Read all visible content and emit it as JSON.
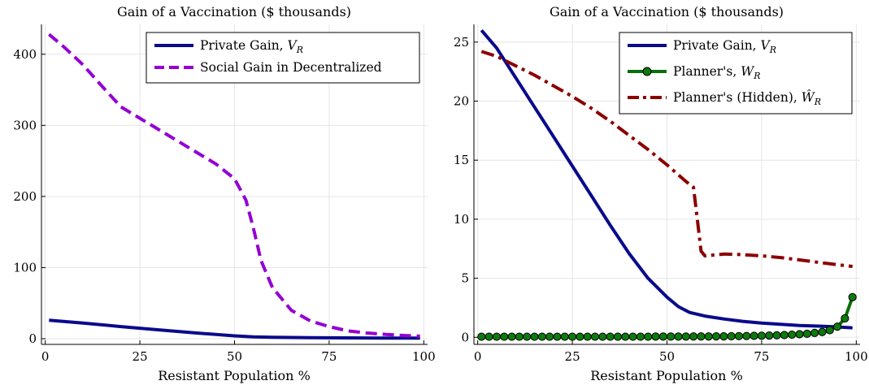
{
  "chart_data": [
    {
      "type": "line",
      "title": "Gain of a Vaccination ($ thousands)",
      "xlabel": "Resistant Population %",
      "ylabel": "",
      "xlim": [
        -1,
        101
      ],
      "ylim": [
        -8,
        442
      ],
      "xticks": [
        "0",
        "25",
        "50",
        "75",
        "100"
      ],
      "yticks": [
        "0",
        "100",
        "200",
        "300",
        "400"
      ],
      "grid": true,
      "legend_position": "top-right",
      "series": [
        {
          "name": "Private Gain, V_R",
          "legend_label": "Private Gain, ",
          "legend_math": "V",
          "legend_sub": "R",
          "color": "#0a0a8c",
          "style": "solid",
          "x": [
            1,
            10,
            20,
            30,
            40,
            50,
            55,
            60,
            70,
            80,
            90,
            99
          ],
          "y": [
            26,
            22,
            17,
            12.5,
            8,
            4,
            2.5,
            1.9,
            1.4,
            1.1,
            0.9,
            0.8
          ]
        },
        {
          "name": "Social Gain in Decentralized",
          "legend_label": "Social Gain in Decentralized",
          "color": "#9400d3",
          "style": "dashed",
          "x": [
            1,
            5,
            10,
            15,
            20,
            25,
            30,
            35,
            40,
            45,
            50,
            53,
            55,
            57,
            60,
            65,
            70,
            75,
            80,
            85,
            90,
            95,
            99
          ],
          "y": [
            428,
            410,
            385,
            355,
            326,
            310,
            294,
            278,
            262,
            246,
            225,
            195,
            155,
            110,
            72,
            40,
            25,
            17,
            11,
            8,
            6,
            4.5,
            3.5
          ]
        }
      ]
    },
    {
      "type": "line",
      "title": "Gain of a Vaccination ($ thousands)",
      "xlabel": "Resistant Population %",
      "ylabel": "",
      "xlim": [
        -1,
        101
      ],
      "ylim": [
        -0.6,
        26.5
      ],
      "xticks": [
        "0",
        "25",
        "50",
        "75",
        "100"
      ],
      "yticks": [
        "0",
        "5",
        "10",
        "15",
        "20",
        "25"
      ],
      "grid": true,
      "legend_position": "top-right",
      "series": [
        {
          "name": "Private Gain, V_R",
          "legend_label": "Private Gain, ",
          "legend_math": "V",
          "legend_sub": "R",
          "color": "#0a0a8c",
          "style": "solid",
          "x": [
            1,
            5,
            10,
            15,
            20,
            25,
            30,
            35,
            40,
            45,
            50,
            53,
            56,
            60,
            65,
            70,
            75,
            80,
            85,
            90,
            95,
            99
          ],
          "y": [
            26,
            24.5,
            22,
            19.5,
            17,
            14.5,
            12,
            9.5,
            7.1,
            5,
            3.4,
            2.6,
            2.1,
            1.8,
            1.55,
            1.35,
            1.2,
            1.1,
            1.0,
            0.95,
            0.88,
            0.8
          ]
        },
        {
          "name": "Planner's, W_R",
          "legend_label": "Planner's, ",
          "legend_math": "W",
          "legend_sub": "R",
          "color": "#0b6e0b",
          "marker_fill": "#0d7a0d",
          "style": "solid-markers",
          "x": [
            1,
            3,
            5,
            7,
            9,
            11,
            13,
            15,
            17,
            19,
            21,
            23,
            25,
            27,
            29,
            31,
            33,
            35,
            37,
            39,
            41,
            43,
            45,
            47,
            49,
            51,
            53,
            55,
            57,
            59,
            61,
            63,
            65,
            67,
            69,
            71,
            73,
            75,
            77,
            79,
            81,
            83,
            85,
            87,
            89,
            91,
            93,
            95,
            97,
            99
          ],
          "y": [
            0.05,
            0.05,
            0.05,
            0.05,
            0.05,
            0.05,
            0.05,
            0.05,
            0.05,
            0.05,
            0.05,
            0.05,
            0.05,
            0.05,
            0.05,
            0.05,
            0.05,
            0.05,
            0.05,
            0.05,
            0.05,
            0.05,
            0.05,
            0.06,
            0.06,
            0.06,
            0.06,
            0.06,
            0.07,
            0.07,
            0.07,
            0.08,
            0.08,
            0.09,
            0.1,
            0.11,
            0.12,
            0.13,
            0.15,
            0.17,
            0.19,
            0.22,
            0.26,
            0.3,
            0.37,
            0.45,
            0.6,
            0.9,
            1.6,
            3.4
          ]
        },
        {
          "name": "Planner's (Hidden), Ŵ_R",
          "legend_label": "Planner's (Hidden), ",
          "legend_math": "Ŵ",
          "legend_sub": "R",
          "color": "#8b0000",
          "style": "dashdot",
          "x": [
            1,
            5,
            10,
            15,
            20,
            25,
            30,
            35,
            40,
            45,
            50,
            55,
            57,
            58,
            59,
            60,
            65,
            70,
            75,
            80,
            85,
            90,
            95,
            99
          ],
          "y": [
            24.2,
            23.8,
            23.0,
            22.2,
            21.3,
            20.4,
            19.4,
            18.3,
            17.1,
            15.9,
            14.6,
            13.2,
            12.7,
            10,
            7.3,
            6.9,
            7.05,
            7.0,
            6.9,
            6.75,
            6.55,
            6.35,
            6.15,
            6.0
          ]
        }
      ]
    }
  ]
}
